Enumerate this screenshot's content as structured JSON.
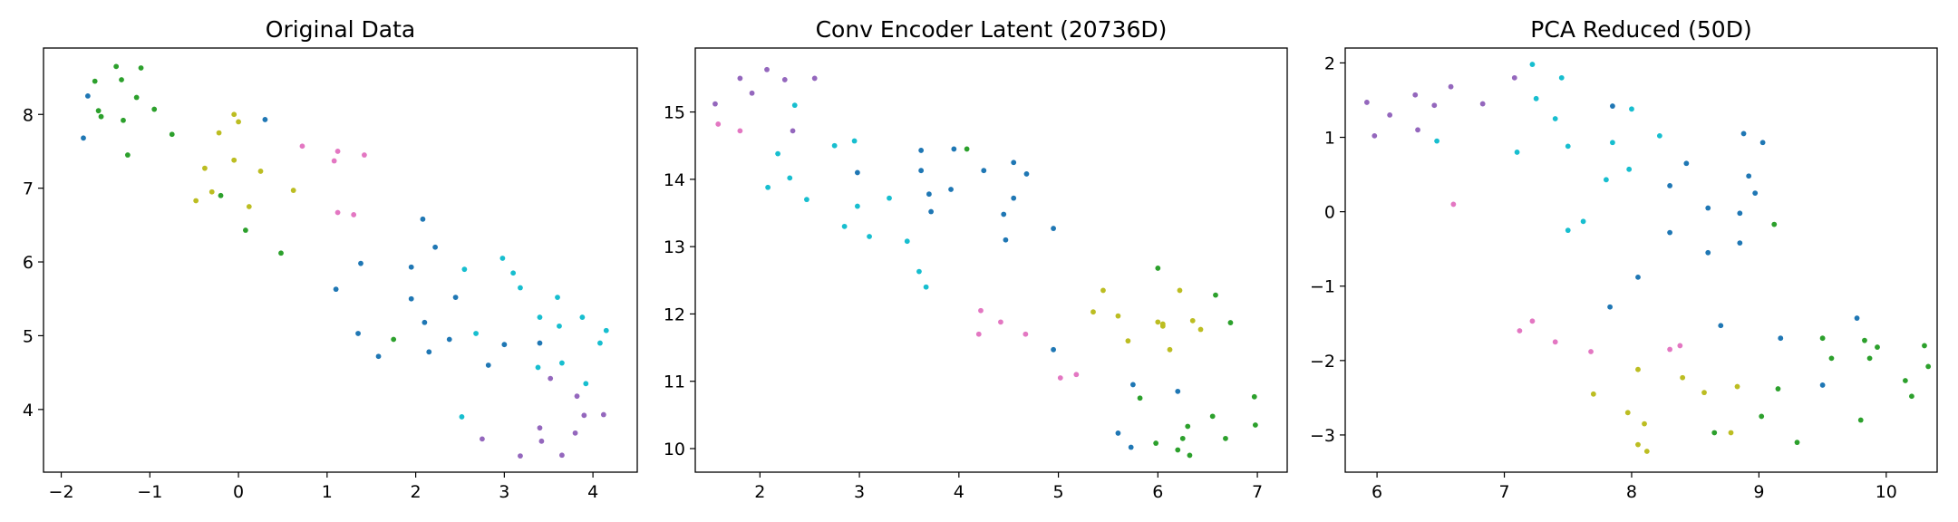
{
  "chart_data": [
    {
      "type": "scatter",
      "title": "Original Data",
      "xlabel": "",
      "ylabel": "",
      "xlim": [
        -2.2,
        4.5
      ],
      "ylim": [
        3.15,
        8.9
      ],
      "xticks": [
        -2,
        -1,
        0,
        1,
        2,
        3,
        4
      ],
      "yticks": [
        4,
        5,
        6,
        7,
        8
      ],
      "grid": false,
      "series": [
        {
          "color": "#1f77b4",
          "points": [
            [
              -1.7,
              8.25
            ],
            [
              -1.75,
              7.68
            ],
            [
              0.3,
              7.93
            ],
            [
              1.1,
              5.63
            ],
            [
              1.38,
              5.98
            ],
            [
              1.35,
              5.03
            ],
            [
              1.58,
              4.72
            ],
            [
              1.95,
              5.93
            ],
            [
              1.95,
              5.5
            ],
            [
              2.1,
              5.18
            ],
            [
              2.08,
              6.58
            ],
            [
              2.22,
              6.2
            ],
            [
              2.15,
              4.78
            ],
            [
              2.38,
              4.95
            ],
            [
              2.45,
              5.52
            ],
            [
              2.82,
              4.6
            ],
            [
              3.0,
              4.88
            ],
            [
              3.4,
              4.9
            ]
          ]
        },
        {
          "color": "#2ca02c",
          "points": [
            [
              -1.62,
              8.45
            ],
            [
              -1.58,
              8.05
            ],
            [
              -1.55,
              7.97
            ],
            [
              -1.38,
              8.65
            ],
            [
              -1.32,
              8.47
            ],
            [
              -1.3,
              7.92
            ],
            [
              -1.25,
              7.45
            ],
            [
              -1.15,
              8.23
            ],
            [
              -1.1,
              8.63
            ],
            [
              -0.95,
              8.07
            ],
            [
              -0.75,
              7.73
            ],
            [
              -0.2,
              6.9
            ],
            [
              0.08,
              6.43
            ],
            [
              0.48,
              6.12
            ],
            [
              1.75,
              4.95
            ]
          ]
        },
        {
          "color": "#bcbd22",
          "points": [
            [
              -0.48,
              6.83
            ],
            [
              -0.38,
              7.27
            ],
            [
              -0.3,
              6.95
            ],
            [
              -0.22,
              7.75
            ],
            [
              -0.05,
              7.38
            ],
            [
              -0.05,
              8.0
            ],
            [
              0.0,
              7.9
            ],
            [
              0.12,
              6.75
            ],
            [
              0.25,
              7.23
            ],
            [
              0.62,
              6.97
            ]
          ]
        },
        {
          "color": "#e377c2",
          "points": [
            [
              0.72,
              7.57
            ],
            [
              1.08,
              7.37
            ],
            [
              1.12,
              7.5
            ],
            [
              1.12,
              6.67
            ],
            [
              1.3,
              6.64
            ],
            [
              1.42,
              7.45
            ]
          ]
        },
        {
          "color": "#17becf",
          "points": [
            [
              2.52,
              3.9
            ],
            [
              2.55,
              5.9
            ],
            [
              2.68,
              5.03
            ],
            [
              2.98,
              6.05
            ],
            [
              3.1,
              5.85
            ],
            [
              3.18,
              5.65
            ],
            [
              3.38,
              4.57
            ],
            [
              3.4,
              5.25
            ],
            [
              3.6,
              5.52
            ],
            [
              3.62,
              5.13
            ],
            [
              3.65,
              4.63
            ],
            [
              3.88,
              5.25
            ],
            [
              3.92,
              4.35
            ],
            [
              4.08,
              4.9
            ],
            [
              4.15,
              5.07
            ]
          ]
        },
        {
          "color": "#9467bd",
          "points": [
            [
              2.75,
              3.6
            ],
            [
              3.18,
              3.37
            ],
            [
              3.4,
              3.75
            ],
            [
              3.42,
              3.57
            ],
            [
              3.52,
              4.42
            ],
            [
              3.65,
              3.38
            ],
            [
              3.8,
              3.68
            ],
            [
              3.82,
              4.18
            ],
            [
              3.9,
              3.92
            ],
            [
              4.12,
              3.93
            ]
          ]
        }
      ]
    },
    {
      "type": "scatter",
      "title": "Conv Encoder Latent (20736D)",
      "xlabel": "",
      "ylabel": "",
      "xlim": [
        1.35,
        7.3
      ],
      "ylim": [
        9.65,
        15.95
      ],
      "xticks": [
        2,
        3,
        4,
        5,
        6,
        7
      ],
      "yticks": [
        10,
        11,
        12,
        13,
        14,
        15
      ],
      "grid": false,
      "series": [
        {
          "color": "#9467bd",
          "points": [
            [
              1.55,
              15.12
            ],
            [
              1.8,
              15.5
            ],
            [
              1.92,
              15.28
            ],
            [
              2.07,
              15.63
            ],
            [
              2.25,
              15.48
            ],
            [
              2.33,
              14.72
            ],
            [
              2.55,
              15.5
            ]
          ]
        },
        {
          "color": "#e377c2",
          "points": [
            [
              1.58,
              14.82
            ],
            [
              1.8,
              14.72
            ],
            [
              4.2,
              11.7
            ],
            [
              4.22,
              12.05
            ],
            [
              4.42,
              11.88
            ],
            [
              4.67,
              11.7
            ],
            [
              5.02,
              11.05
            ],
            [
              5.18,
              11.1
            ]
          ]
        },
        {
          "color": "#17becf",
          "points": [
            [
              2.08,
              13.88
            ],
            [
              2.18,
              14.38
            ],
            [
              2.3,
              14.02
            ],
            [
              2.35,
              15.1
            ],
            [
              2.47,
              13.7
            ],
            [
              2.75,
              14.5
            ],
            [
              2.85,
              13.3
            ],
            [
              2.95,
              14.57
            ],
            [
              2.98,
              13.6
            ],
            [
              3.1,
              13.15
            ],
            [
              3.3,
              13.72
            ],
            [
              3.48,
              13.08
            ],
            [
              3.6,
              12.63
            ],
            [
              3.67,
              12.4
            ]
          ]
        },
        {
          "color": "#1f77b4",
          "points": [
            [
              2.98,
              14.1
            ],
            [
              3.62,
              14.43
            ],
            [
              3.62,
              14.13
            ],
            [
              3.7,
              13.78
            ],
            [
              3.72,
              13.52
            ],
            [
              3.92,
              13.85
            ],
            [
              3.95,
              14.45
            ],
            [
              4.25,
              14.13
            ],
            [
              4.45,
              13.48
            ],
            [
              4.47,
              13.1
            ],
            [
              4.55,
              13.72
            ],
            [
              4.55,
              14.25
            ],
            [
              4.68,
              14.08
            ],
            [
              4.95,
              13.27
            ],
            [
              4.95,
              11.47
            ],
            [
              5.6,
              10.23
            ],
            [
              5.73,
              10.02
            ],
            [
              5.75,
              10.95
            ],
            [
              6.2,
              10.85
            ]
          ]
        },
        {
          "color": "#2ca02c",
          "points": [
            [
              4.08,
              14.45
            ],
            [
              5.82,
              10.75
            ],
            [
              5.98,
              10.08
            ],
            [
              6.0,
              12.68
            ],
            [
              6.2,
              9.98
            ],
            [
              6.25,
              10.15
            ],
            [
              6.3,
              10.33
            ],
            [
              6.32,
              9.9
            ],
            [
              6.55,
              10.48
            ],
            [
              6.58,
              12.28
            ],
            [
              6.68,
              10.15
            ],
            [
              6.73,
              11.87
            ],
            [
              6.97,
              10.77
            ],
            [
              6.98,
              10.35
            ]
          ]
        },
        {
          "color": "#bcbd22",
          "points": [
            [
              5.35,
              12.03
            ],
            [
              5.45,
              12.35
            ],
            [
              5.6,
              11.97
            ],
            [
              5.7,
              11.6
            ],
            [
              6.0,
              11.88
            ],
            [
              6.05,
              11.82
            ],
            [
              6.05,
              11.85
            ],
            [
              6.12,
              11.47
            ],
            [
              6.22,
              12.35
            ],
            [
              6.35,
              11.9
            ],
            [
              6.43,
              11.77
            ]
          ]
        }
      ]
    },
    {
      "type": "scatter",
      "title": "PCA Reduced (50D)",
      "xlabel": "",
      "ylabel": "",
      "xlim": [
        5.75,
        10.4
      ],
      "ylim": [
        -3.5,
        2.2
      ],
      "xticks": [
        6,
        7,
        8,
        9,
        10
      ],
      "yticks": [
        -3,
        -2,
        -1,
        0,
        1,
        2
      ],
      "grid": false,
      "series": [
        {
          "color": "#9467bd",
          "points": [
            [
              5.92,
              1.47
            ],
            [
              5.98,
              1.02
            ],
            [
              6.1,
              1.3
            ],
            [
              6.3,
              1.57
            ],
            [
              6.32,
              1.1
            ],
            [
              6.45,
              1.43
            ],
            [
              6.58,
              1.68
            ],
            [
              6.83,
              1.45
            ],
            [
              7.08,
              1.8
            ]
          ]
        },
        {
          "color": "#17becf",
          "points": [
            [
              6.47,
              0.95
            ],
            [
              7.1,
              0.8
            ],
            [
              7.22,
              1.98
            ],
            [
              7.25,
              1.52
            ],
            [
              7.4,
              1.25
            ],
            [
              7.45,
              1.8
            ],
            [
              7.5,
              0.88
            ],
            [
              7.5,
              -0.25
            ],
            [
              7.62,
              -0.13
            ],
            [
              7.8,
              0.43
            ],
            [
              7.85,
              0.93
            ],
            [
              7.98,
              0.57
            ],
            [
              8.0,
              1.38
            ],
            [
              8.22,
              1.02
            ]
          ]
        },
        {
          "color": "#e377c2",
          "points": [
            [
              6.6,
              0.1
            ],
            [
              7.12,
              -1.6
            ],
            [
              7.22,
              -1.47
            ],
            [
              7.4,
              -1.75
            ],
            [
              7.68,
              -1.88
            ],
            [
              8.3,
              -1.85
            ],
            [
              8.38,
              -1.8
            ]
          ]
        },
        {
          "color": "#1f77b4",
          "points": [
            [
              7.85,
              1.42
            ],
            [
              7.83,
              -1.28
            ],
            [
              8.05,
              -0.88
            ],
            [
              8.3,
              0.35
            ],
            [
              8.3,
              -0.28
            ],
            [
              8.43,
              0.65
            ],
            [
              8.6,
              0.05
            ],
            [
              8.6,
              -0.55
            ],
            [
              8.7,
              -1.53
            ],
            [
              8.85,
              -0.02
            ],
            [
              8.85,
              -0.42
            ],
            [
              8.88,
              1.05
            ],
            [
              8.92,
              0.48
            ],
            [
              8.97,
              0.25
            ],
            [
              9.03,
              0.93
            ],
            [
              9.17,
              -1.7
            ],
            [
              9.5,
              -2.33
            ],
            [
              9.77,
              -1.43
            ]
          ]
        },
        {
          "color": "#bcbd22",
          "points": [
            [
              7.7,
              -2.45
            ],
            [
              7.97,
              -2.7
            ],
            [
              8.05,
              -2.12
            ],
            [
              8.05,
              -3.13
            ],
            [
              8.1,
              -2.85
            ],
            [
              8.12,
              -3.22
            ],
            [
              8.4,
              -2.23
            ],
            [
              8.57,
              -2.43
            ],
            [
              8.78,
              -2.97
            ],
            [
              8.83,
              -2.35
            ]
          ]
        },
        {
          "color": "#2ca02c",
          "points": [
            [
              8.65,
              -2.97
            ],
            [
              9.02,
              -2.75
            ],
            [
              9.12,
              -0.17
            ],
            [
              9.15,
              -2.38
            ],
            [
              9.3,
              -3.1
            ],
            [
              9.5,
              -1.7
            ],
            [
              9.57,
              -1.97
            ],
            [
              9.8,
              -2.8
            ],
            [
              9.83,
              -1.73
            ],
            [
              9.87,
              -1.97
            ],
            [
              9.93,
              -1.82
            ],
            [
              10.15,
              -2.27
            ],
            [
              10.2,
              -2.48
            ],
            [
              10.3,
              -1.8
            ],
            [
              10.33,
              -2.08
            ]
          ]
        }
      ]
    }
  ]
}
